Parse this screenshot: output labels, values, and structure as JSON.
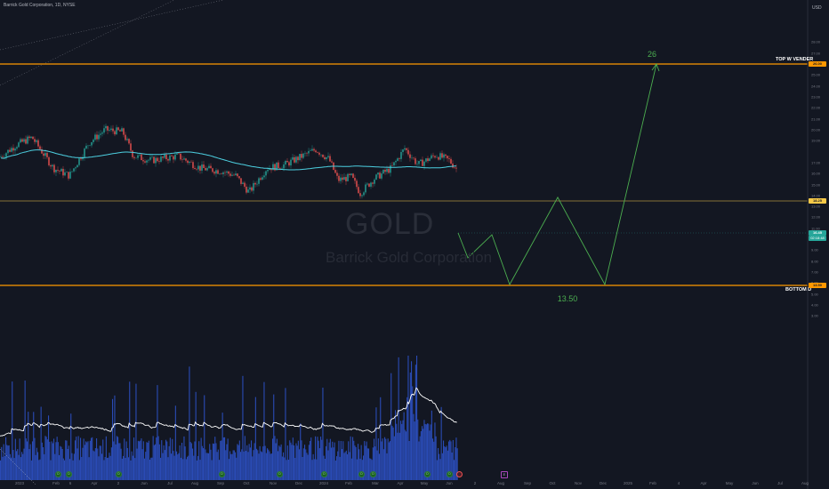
{
  "header": {
    "title": "Barrick Gold Corporation, 1D, NYSE"
  },
  "watermark": {
    "ticker": "GOLD",
    "company": "Barrick Gold Corporation"
  },
  "price_axis": {
    "currency": "USD",
    "ticks": [
      "28.00",
      "27.00",
      "26.00",
      "25.00",
      "24.00",
      "23.00",
      "22.00",
      "21.00",
      "20.00",
      "19.00",
      "17.00",
      "16.00",
      "15.00",
      "14.00",
      "13.00",
      "12.00",
      "11.00",
      "10.00",
      "9.00",
      "8.00",
      "7.00",
      "6.00",
      "5.00",
      "4.00",
      "3.00"
    ]
  },
  "time_axis": {
    "labels": [
      "2023",
      "Feb",
      "6",
      "Apr",
      "2",
      "Jun",
      "Jul",
      "Aug",
      "Sep",
      "Oct",
      "Nov",
      "Dec",
      "2024",
      "Feb",
      "Mar",
      "Apr",
      "May",
      "Jun",
      "2",
      "Aug",
      "Sep",
      "Oct",
      "Nov",
      "Dec",
      "2025",
      "Feb",
      "4",
      "Apr",
      "May",
      "Jun",
      "Jul",
      "Aug"
    ]
  },
  "levels": {
    "top": {
      "label": "TOP W VENDER",
      "price": "26.00",
      "color": "#ff9800"
    },
    "bottom": {
      "label": "BOTTOM D",
      "price": "13.50",
      "color": "#ff9800"
    },
    "middle": {
      "price": "18.25",
      "color": "#f7c948"
    }
  },
  "badges": {
    "current_price": "16.45",
    "countdown": "02:18:48",
    "current_color": "#26a69a"
  },
  "projection": {
    "target_label": "26",
    "low_label": "13.50",
    "color": "#4caf50"
  },
  "markers": {
    "dividend_letter": "D",
    "earnings_letter": "E"
  },
  "colors": {
    "background": "#131722",
    "up": "#26a69a",
    "down": "#ef5350",
    "ma": "#4dd0e1",
    "volume": "#2a4bb5",
    "volume_ma": "#ffffff"
  },
  "chart_data": {
    "type": "candlestick",
    "title": "Barrick Gold Corporation, 1D, NYSE",
    "y_range": [
      2.5,
      28.5
    ],
    "price_series_approx": {
      "dates": [
        "2023-01",
        "2023-02",
        "2023-03",
        "2023-04",
        "2023-05",
        "2023-06",
        "2023-07",
        "2023-08",
        "2023-09",
        "2023-10",
        "2023-11",
        "2023-12",
        "2024-01",
        "2024-02",
        "2024-03",
        "2024-04",
        "2024-05",
        "2024-06"
      ],
      "close": [
        18.5,
        16.0,
        19.5,
        20.0,
        18.0,
        17.0,
        17.5,
        16.5,
        16.0,
        14.5,
        16.5,
        18.0,
        16.5,
        14.3,
        16.5,
        17.5,
        17.0,
        16.45
      ]
    },
    "horizontal_levels": [
      {
        "name": "TOP W VENDER",
        "price": 26.0
      },
      {
        "name": "",
        "price": 18.25
      },
      {
        "name": "BOTTOM D",
        "price": 13.5
      }
    ],
    "projection_path": {
      "dates": [
        "2024-06",
        "2024-07",
        "2024-08",
        "2024-10",
        "2024-12",
        "2025-02"
      ],
      "prices": [
        16.45,
        15.0,
        13.5,
        18.25,
        13.5,
        26.0
      ]
    },
    "volume": {
      "ylabel": "",
      "grid": false
    }
  }
}
